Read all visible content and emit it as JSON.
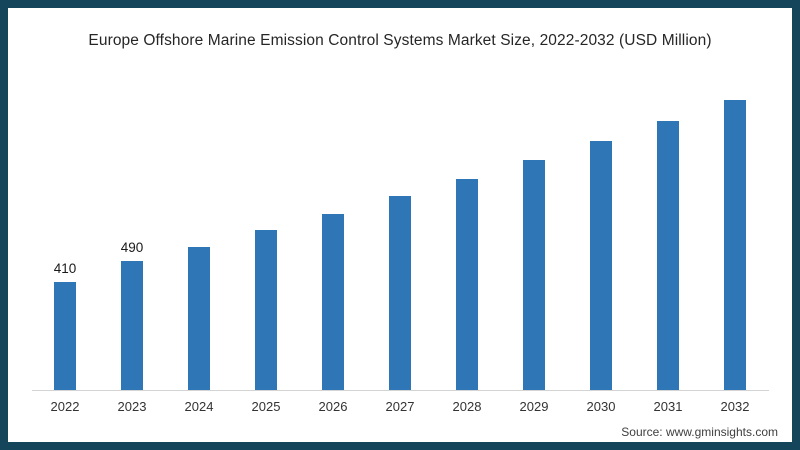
{
  "title": "Europe Offshore Marine Emission Control Systems Market Size, 2022-2032 (USD Million)",
  "source_text": "Source: www.gminsights.com",
  "colors": {
    "frame_border": "#14455a",
    "bar": "#2e76b5",
    "axis_line": "#d4d4d4",
    "title_text": "#262626",
    "tick_text": "#333333",
    "data_label_text": "#1a1a1a",
    "source_text": "#404040",
    "background": "#ffffff"
  },
  "chart_data": {
    "type": "bar",
    "title": "Europe Offshore Marine Emission Control Systems Market Size, 2022-2032 (USD Million)",
    "unit": "USD Million",
    "categories": [
      "2022",
      "2023",
      "2024",
      "2025",
      "2026",
      "2027",
      "2028",
      "2029",
      "2030",
      "2031",
      "2032"
    ],
    "values": [
      410,
      490,
      545,
      610,
      670,
      740,
      805,
      875,
      950,
      1025,
      1105
    ],
    "data_labels": [
      "410",
      "490",
      "",
      "",
      "",
      "",
      "",
      "",
      "",
      "",
      ""
    ],
    "xlabel": "",
    "ylabel": "",
    "ylim": [
      0,
      1160
    ],
    "grid": false,
    "legend": false,
    "yaxis_shown": false,
    "source": "Source: www.gminsights.com"
  }
}
